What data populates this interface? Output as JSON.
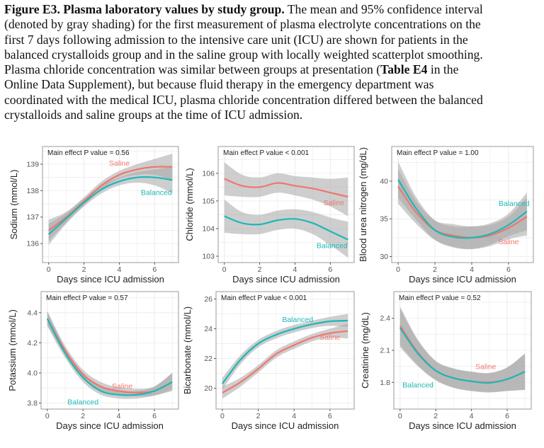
{
  "caption": {
    "line0_bold": "Figure E3.  Plasma laboratory values by study group.",
    "line0_rest": "  The mean and 95% confidence interval",
    "line1": "(denoted by gray shading) for the first measurement of plasma electrolyte concentrations on the",
    "line2": "first 7 days following admission to the intensive care unit (ICU) are shown for patients in the",
    "line3": "balanced crystalloids group and in the saline group with locally weighted scatterplot smoothing.",
    "line4_a": "Plasma chloride concentration was similar between groups at presentation (",
    "line4_bold": "Table E4",
    "line4_b": " in the",
    "line5": "Online Data Supplement), but because fluid therapy in the emergency department was",
    "line6": "coordinated with the medical ICU, plasma chloride concentration differed between the balanced",
    "line7": "crystalloids and saline groups at the time of ICU admission."
  },
  "colors": {
    "saline": "#F0766E",
    "balanced": "#1DB7B7",
    "ci_band": "#a6a6a6",
    "grid": "#ebebeb",
    "panel_border": "#9a9a9a"
  },
  "chart_data": [
    {
      "type": "line",
      "annotation": "Main effect P value = 0.56",
      "xlabel": "Days since ICU admission",
      "ylabel": "Sodium (mmol/L)",
      "x": [
        0,
        1,
        2,
        3,
        4,
        5,
        6,
        7
      ],
      "xticks": [
        "0",
        "2",
        "4",
        "6"
      ],
      "yticks": [
        "136",
        "137",
        "138",
        "139"
      ],
      "ylim": [
        135.28,
        139.67
      ],
      "xlim": [
        -0.35,
        7.35
      ],
      "grid": true,
      "series": [
        {
          "name": "Saline",
          "color_key": "saline",
          "values": [
            136.5,
            137.0,
            137.6,
            138.2,
            138.6,
            138.8,
            138.9,
            138.9
          ],
          "lower": [
            136.1,
            136.8,
            137.45,
            138.05,
            138.45,
            138.6,
            138.6,
            138.4
          ],
          "upper": [
            136.9,
            137.2,
            137.75,
            138.35,
            138.75,
            139.0,
            139.2,
            139.4
          ]
        },
        {
          "name": "Balanced",
          "color_key": "balanced",
          "values": [
            136.35,
            136.95,
            137.55,
            138.05,
            138.35,
            138.5,
            138.5,
            138.4
          ],
          "lower": [
            135.95,
            136.75,
            137.4,
            137.9,
            138.2,
            138.3,
            138.2,
            137.9
          ],
          "upper": [
            136.75,
            137.15,
            137.7,
            138.2,
            138.5,
            138.7,
            138.8,
            138.9
          ]
        }
      ]
    },
    {
      "type": "line",
      "annotation": "Main effect P value < 0.001",
      "xlabel": "Days since ICU admission",
      "ylabel": "Chloride (mmol/L)",
      "x": [
        0,
        1,
        2,
        3,
        4,
        5,
        6,
        7
      ],
      "xticks": [
        "0",
        "2",
        "4",
        "6"
      ],
      "yticks": [
        "103",
        "104",
        "105",
        "106"
      ],
      "ylim": [
        102.77,
        106.97
      ],
      "xlim": [
        -0.35,
        7.35
      ],
      "grid": true,
      "series": [
        {
          "name": "Saline",
          "color_key": "saline",
          "values": [
            105.8,
            105.55,
            105.5,
            105.65,
            105.55,
            105.45,
            105.3,
            105.15
          ],
          "lower": [
            105.2,
            105.15,
            105.15,
            105.3,
            105.2,
            105.05,
            104.8,
            104.45
          ],
          "upper": [
            106.4,
            105.95,
            105.85,
            106.0,
            105.9,
            105.85,
            105.8,
            105.85
          ]
        },
        {
          "name": "Balanced",
          "color_key": "balanced",
          "values": [
            104.45,
            104.2,
            104.15,
            104.3,
            104.35,
            104.2,
            103.9,
            103.6
          ],
          "lower": [
            103.85,
            103.8,
            103.8,
            103.95,
            104.0,
            103.8,
            103.4,
            102.95
          ],
          "upper": [
            105.05,
            104.6,
            104.5,
            104.65,
            104.7,
            104.6,
            104.4,
            104.25
          ]
        }
      ]
    },
    {
      "type": "line",
      "annotation": "Main effect P value = 1.00",
      "xlabel": "Days since ICU admission",
      "ylabel": "Blood urea nitrogen (mg/dL)",
      "x": [
        0,
        1,
        2,
        3,
        4,
        5,
        6,
        7
      ],
      "xticks": [
        "0",
        "2",
        "4",
        "6"
      ],
      "yticks": [
        "30",
        "35",
        "40"
      ],
      "ylim": [
        29.2,
        44.6
      ],
      "xlim": [
        -0.35,
        7.35
      ],
      "grid": true,
      "series": [
        {
          "name": "Saline",
          "color_key": "saline",
          "values": [
            39.3,
            35.8,
            33.5,
            32.8,
            32.5,
            32.8,
            33.8,
            35.3
          ],
          "lower": [
            37.0,
            34.3,
            32.2,
            31.3,
            31.0,
            31.4,
            32.3,
            32.8
          ],
          "upper": [
            41.6,
            37.3,
            34.8,
            34.3,
            34.0,
            34.2,
            35.3,
            37.8
          ]
        },
        {
          "name": "Balanced",
          "color_key": "balanced",
          "values": [
            40.2,
            36.3,
            33.5,
            32.6,
            32.5,
            33.0,
            34.2,
            36.0
          ],
          "lower": [
            37.8,
            34.8,
            32.2,
            31.2,
            31.0,
            31.6,
            32.7,
            33.5
          ],
          "upper": [
            42.6,
            37.8,
            34.8,
            34.0,
            34.0,
            34.4,
            35.7,
            38.5
          ]
        }
      ]
    },
    {
      "type": "line",
      "annotation": "Main effect P value = 0.57",
      "xlabel": "Days since ICU admission",
      "ylabel": "Potassium (mmol/L)",
      "x": [
        0,
        1,
        2,
        3,
        4,
        5,
        6,
        7
      ],
      "xticks": [
        "0",
        "2",
        "4",
        "6"
      ],
      "yticks": [
        "3.8",
        "4.0",
        "4.2",
        "4.4"
      ],
      "ylim": [
        3.76,
        4.54
      ],
      "xlim": [
        -0.35,
        7.35
      ],
      "grid": true,
      "series": [
        {
          "name": "Saline",
          "color_key": "saline",
          "values": [
            4.36,
            4.15,
            3.99,
            3.91,
            3.88,
            3.87,
            3.88,
            3.94
          ],
          "lower": [
            4.32,
            4.12,
            3.96,
            3.885,
            3.855,
            3.845,
            3.85,
            3.89
          ],
          "upper": [
            4.41,
            4.18,
            4.02,
            3.94,
            3.905,
            3.895,
            3.91,
            4.0
          ]
        },
        {
          "name": "Balanced",
          "color_key": "balanced",
          "values": [
            4.36,
            4.13,
            3.97,
            3.88,
            3.855,
            3.855,
            3.88,
            3.94
          ],
          "lower": [
            4.31,
            4.1,
            3.94,
            3.855,
            3.83,
            3.83,
            3.85,
            3.88
          ],
          "upper": [
            4.41,
            4.16,
            4.0,
            3.905,
            3.88,
            3.88,
            3.91,
            4.0
          ]
        }
      ]
    },
    {
      "type": "line",
      "annotation": "Main effect P value < 0.001",
      "xlabel": "Days since ICU admission",
      "ylabel": "Bicarbonate (mmol/L)",
      "x": [
        0,
        1,
        2,
        3,
        4,
        5,
        6,
        7
      ],
      "xticks": [
        "0",
        "2",
        "4",
        "6"
      ],
      "yticks": [
        "20",
        "22",
        "24",
        "26"
      ],
      "ylim": [
        18.6,
        26.5
      ],
      "xlim": [
        -0.35,
        7.35
      ],
      "grid": true,
      "series": [
        {
          "name": "Saline",
          "color_key": "saline",
          "values": [
            19.7,
            20.4,
            21.3,
            22.3,
            22.9,
            23.4,
            23.7,
            23.85
          ],
          "lower": [
            19.3,
            20.1,
            21.05,
            22.05,
            22.65,
            23.15,
            23.4,
            23.35
          ],
          "upper": [
            20.1,
            20.7,
            21.55,
            22.55,
            23.15,
            23.65,
            24.0,
            24.35
          ]
        },
        {
          "name": "Balanced",
          "color_key": "balanced",
          "values": [
            20.3,
            21.9,
            23.0,
            23.6,
            24.0,
            24.3,
            24.5,
            24.55
          ],
          "lower": [
            19.9,
            21.6,
            22.75,
            23.35,
            23.75,
            24.05,
            24.2,
            24.1
          ],
          "upper": [
            20.7,
            22.2,
            23.25,
            23.85,
            24.25,
            24.55,
            24.8,
            25.0
          ]
        }
      ]
    },
    {
      "type": "line",
      "annotation": "Main effect P value = 0.52",
      "xlabel": "Days since ICU admission",
      "ylabel": "Creatinine (mg/dL)",
      "x": [
        0,
        1,
        2,
        3,
        4,
        5,
        6,
        7
      ],
      "xticks": [
        "0",
        "2",
        "4",
        "6"
      ],
      "yticks": [
        "1.8",
        "2.1",
        "2.4"
      ],
      "ylim": [
        1.55,
        2.65
      ],
      "xlim": [
        -0.35,
        7.35
      ],
      "grid": true,
      "series": [
        {
          "name": "Saline",
          "color_key": "saline",
          "values": [
            2.33,
            2.08,
            1.91,
            1.84,
            1.81,
            1.8,
            1.83,
            1.9
          ],
          "lower": [
            2.15,
            1.96,
            1.82,
            1.75,
            1.72,
            1.71,
            1.72,
            1.73
          ],
          "upper": [
            2.51,
            2.2,
            2.0,
            1.93,
            1.9,
            1.89,
            1.94,
            2.07
          ]
        },
        {
          "name": "Balanced",
          "color_key": "balanced",
          "values": [
            2.31,
            2.07,
            1.91,
            1.84,
            1.81,
            1.795,
            1.83,
            1.9
          ],
          "lower": [
            2.13,
            1.95,
            1.82,
            1.75,
            1.72,
            1.705,
            1.72,
            1.73
          ],
          "upper": [
            2.49,
            2.19,
            2.0,
            1.93,
            1.9,
            1.885,
            1.94,
            2.07
          ]
        }
      ]
    }
  ]
}
